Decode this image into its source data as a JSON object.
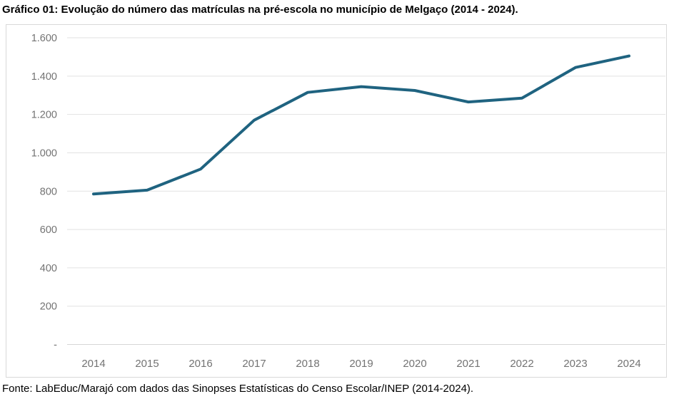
{
  "page": {
    "title": "Gráfico 01: Evolução do número das matrículas na pré-escola no município de Melgaço (2014 - 2024).",
    "source": "Fonte: LabEduc/Marajó com dados das Sinopses Estatísticas do Censo Escolar/INEP (2014-2024)."
  },
  "colors": {
    "line": "#1f6380",
    "gridline": "#e2e2e2",
    "axis_line": "#d6d6d6",
    "tick_label": "#737373",
    "chart_border": "#d9d9d9",
    "title_text": "#000000",
    "background": "#ffffff"
  },
  "chart_data": {
    "type": "line",
    "title": "Gráfico 01: Evolução do número das matrículas na pré-escola no município de Melgaço (2014 - 2024).",
    "x": [
      "2014",
      "2015",
      "2016",
      "2017",
      "2018",
      "2019",
      "2020",
      "2021",
      "2022",
      "2023",
      "2024"
    ],
    "values": [
      785,
      805,
      915,
      1170,
      1315,
      1345,
      1325,
      1265,
      1285,
      1445,
      1505
    ],
    "xlabel": "",
    "ylabel": "",
    "ylim": [
      0,
      1600
    ],
    "yticks": [
      0,
      200,
      400,
      600,
      800,
      1000,
      1200,
      1400,
      1600
    ],
    "ytick_labels": [
      "-",
      "200",
      "400",
      "600",
      "800",
      "1.000",
      "1.200",
      "1.400",
      "1.600"
    ],
    "grid": true,
    "legend": "none"
  }
}
